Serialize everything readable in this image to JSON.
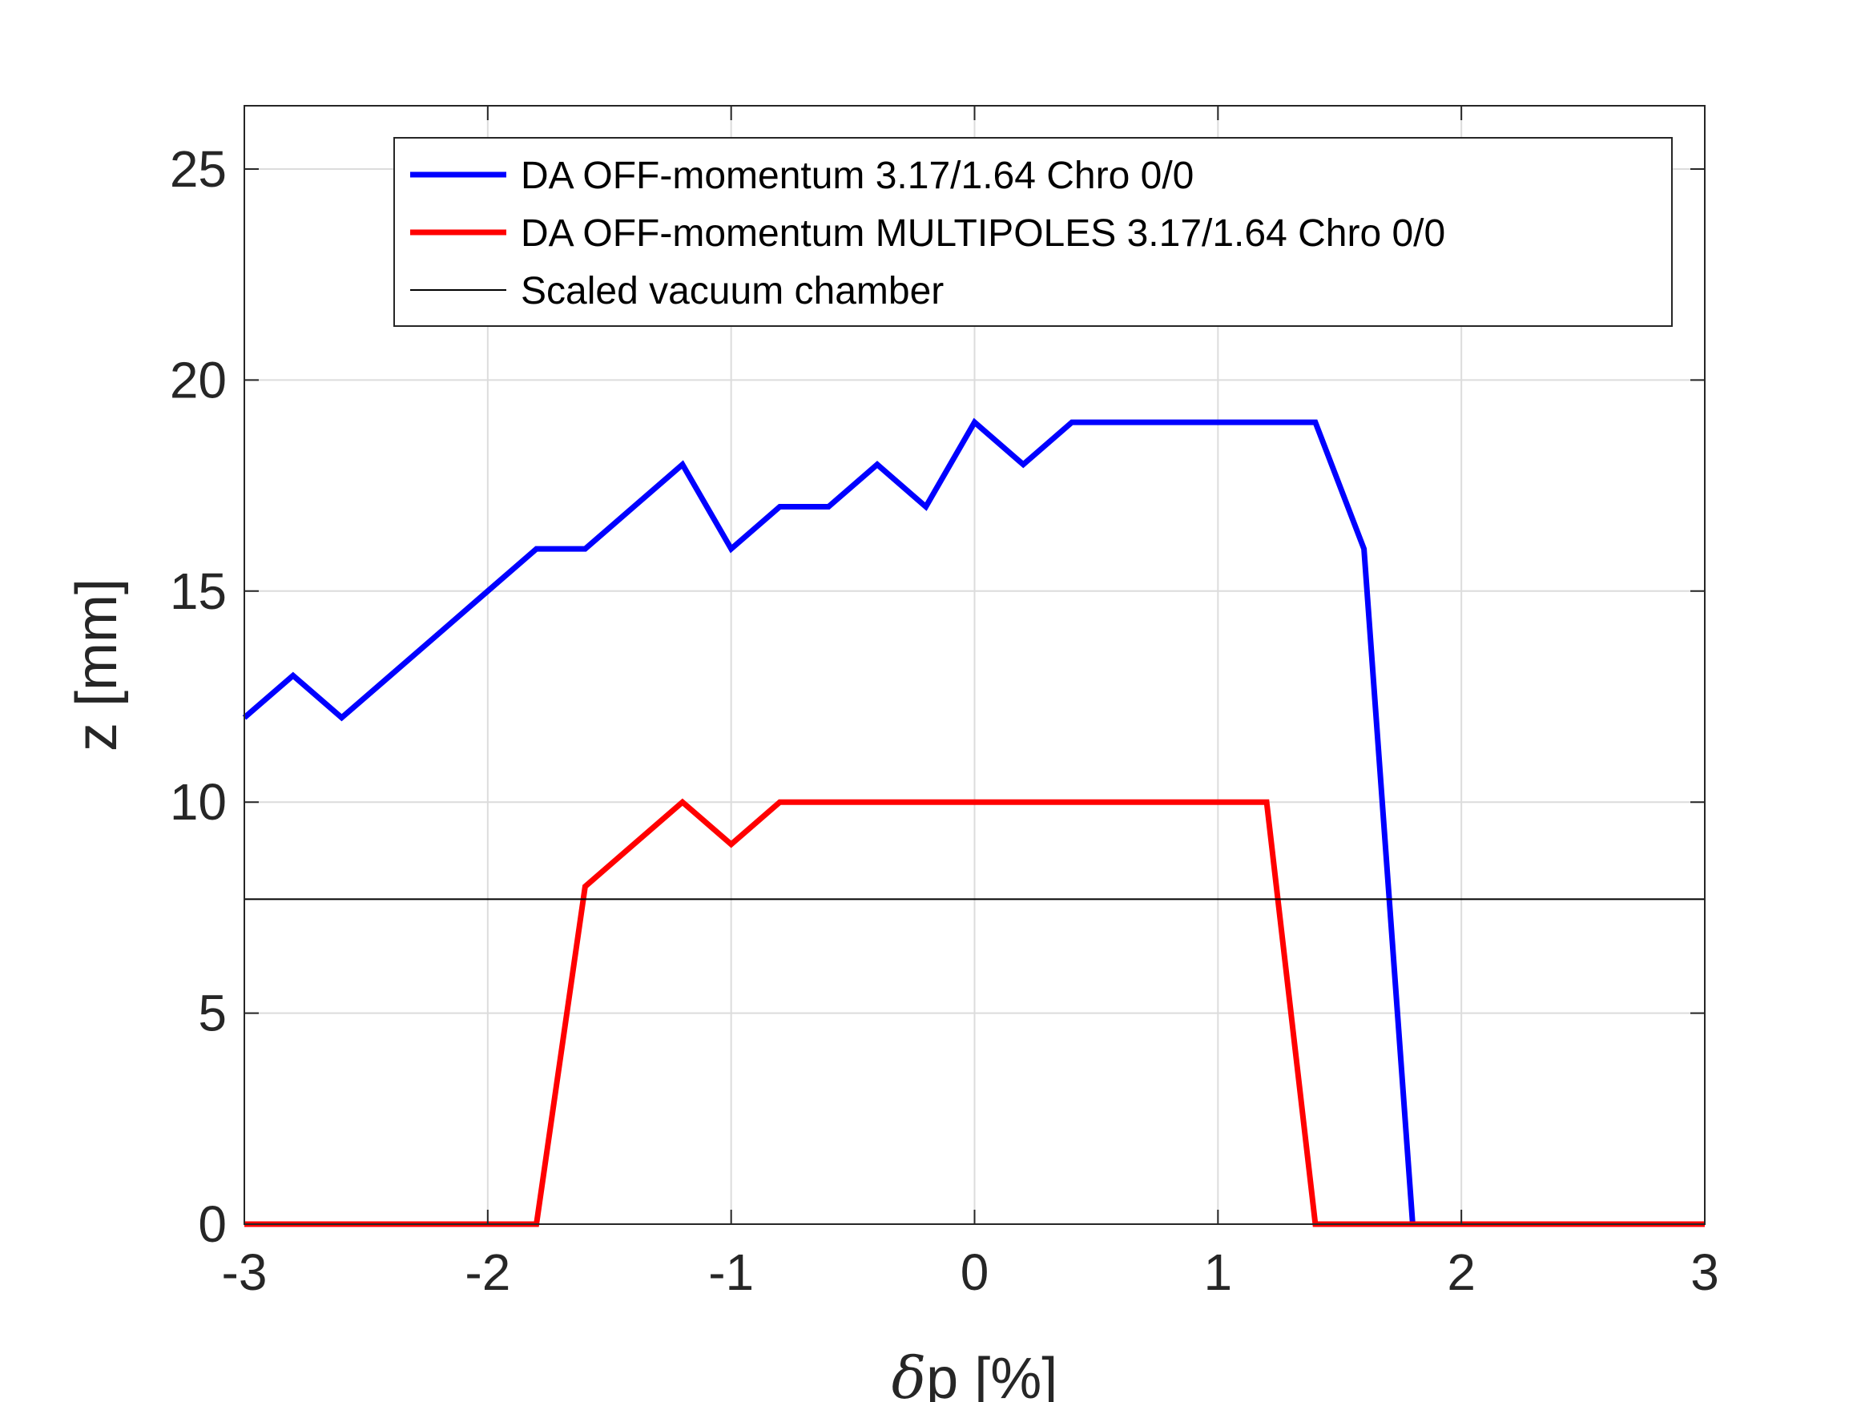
{
  "chart_data": {
    "type": "line",
    "xlabel_symbol": "δ",
    "xlabel_rest": "p [%]",
    "ylabel": "z [mm]",
    "xlim": [
      -3,
      3
    ],
    "ylim": [
      0,
      26.5
    ],
    "xticks": [
      -3,
      -2,
      -1,
      0,
      1,
      2,
      3
    ],
    "xtick_labels": [
      "-3",
      "-2",
      "-1",
      "0",
      "1",
      "2",
      "3"
    ],
    "yticks": [
      0,
      5,
      10,
      15,
      20,
      25
    ],
    "ytick_labels": [
      "0",
      "5",
      "10",
      "15",
      "20",
      "25"
    ],
    "grid": true,
    "legend_position": "top-right",
    "series": [
      {
        "name": "DA OFF-momentum 3.17/1.64 Chro 0/0",
        "color": "#0000ff",
        "x": [
          -3,
          -2.8,
          -2.6,
          -2.4,
          -2.2,
          -2.0,
          -1.8,
          -1.6,
          -1.4,
          -1.2,
          -1.0,
          -0.8,
          -0.6,
          -0.4,
          -0.2,
          0,
          0.2,
          0.4,
          0.6,
          0.8,
          1.0,
          1.2,
          1.4,
          1.6,
          1.8
        ],
        "y": [
          12,
          13,
          12,
          13,
          14,
          15,
          16,
          16,
          17,
          18,
          16,
          17,
          17,
          18,
          17,
          19,
          18,
          19,
          19,
          19,
          19,
          19,
          19,
          16,
          0
        ]
      },
      {
        "name": "DA OFF-momentum MULTIPOLES 3.17/1.64 Chro 0/0",
        "color": "#ff0000",
        "x": [
          -3,
          -2.8,
          -2.6,
          -2.4,
          -2.2,
          -2.0,
          -1.8,
          -1.6,
          -1.4,
          -1.2,
          -1.0,
          -0.8,
          -0.6,
          -0.4,
          -0.2,
          0,
          0.2,
          0.4,
          0.6,
          0.8,
          1.0,
          1.2,
          1.4,
          1.6,
          1.8,
          2.0,
          2.2,
          2.4,
          2.6,
          2.8,
          3.0
        ],
        "y": [
          0,
          0,
          0,
          0,
          0,
          0,
          0,
          8,
          9,
          10,
          9,
          10,
          10,
          10,
          10,
          10,
          10,
          10,
          10,
          10,
          10,
          10,
          0,
          0,
          0,
          0,
          0,
          0,
          0,
          0,
          0
        ]
      },
      {
        "name": "Scaled vacuum chamber",
        "color": "#000000",
        "x": [
          -3,
          3
        ],
        "y": [
          7.7,
          7.7
        ]
      }
    ]
  }
}
